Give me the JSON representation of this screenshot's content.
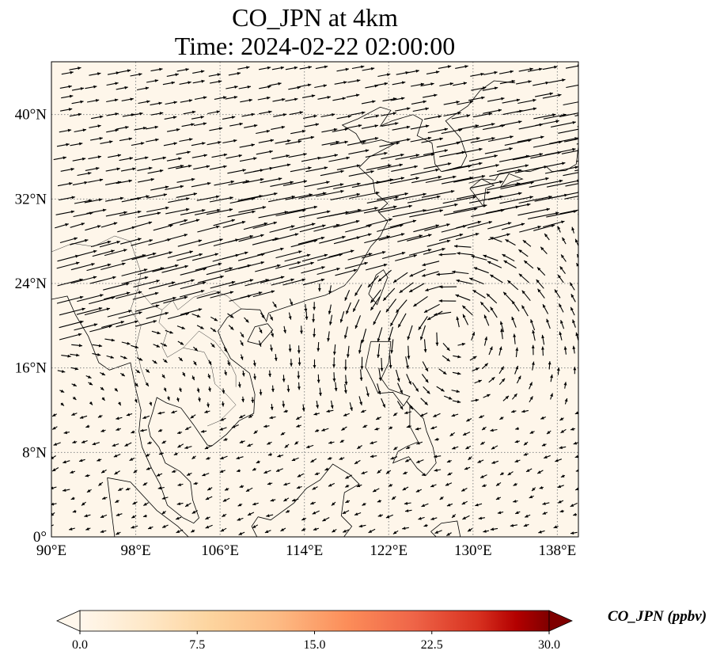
{
  "title": {
    "line1": "CO_JPN at 4km",
    "line2": "Time: 2024-02-22 02:00:00"
  },
  "map": {
    "extent": {
      "lon": [
        90,
        140
      ],
      "lat": [
        0,
        45
      ]
    },
    "background_color": "#fef6ea",
    "gridline_style": "dotted gray",
    "lon_ticks": [
      {
        "value": 90,
        "label": "90°E"
      },
      {
        "value": 98,
        "label": "98°E"
      },
      {
        "value": 106,
        "label": "106°E"
      },
      {
        "value": 114,
        "label": "114°E"
      },
      {
        "value": 122,
        "label": "122°E"
      },
      {
        "value": 130,
        "label": "130°E"
      },
      {
        "value": 138,
        "label": "138°E"
      }
    ],
    "lat_ticks": [
      {
        "value": 0,
        "label": "0°"
      },
      {
        "value": 8,
        "label": "8°N"
      },
      {
        "value": 16,
        "label": "16°N"
      },
      {
        "value": 24,
        "label": "24°N"
      },
      {
        "value": 32,
        "label": "32°N"
      },
      {
        "value": 40,
        "label": "40°N"
      }
    ]
  },
  "colorbar": {
    "label": "CO_JPN (ppbv)",
    "colormap": "OrRd",
    "ticks": [
      "0.0",
      "7.5",
      "15.0",
      "22.5",
      "30.0"
    ],
    "min": 0,
    "max": 30,
    "extend": "both"
  }
}
